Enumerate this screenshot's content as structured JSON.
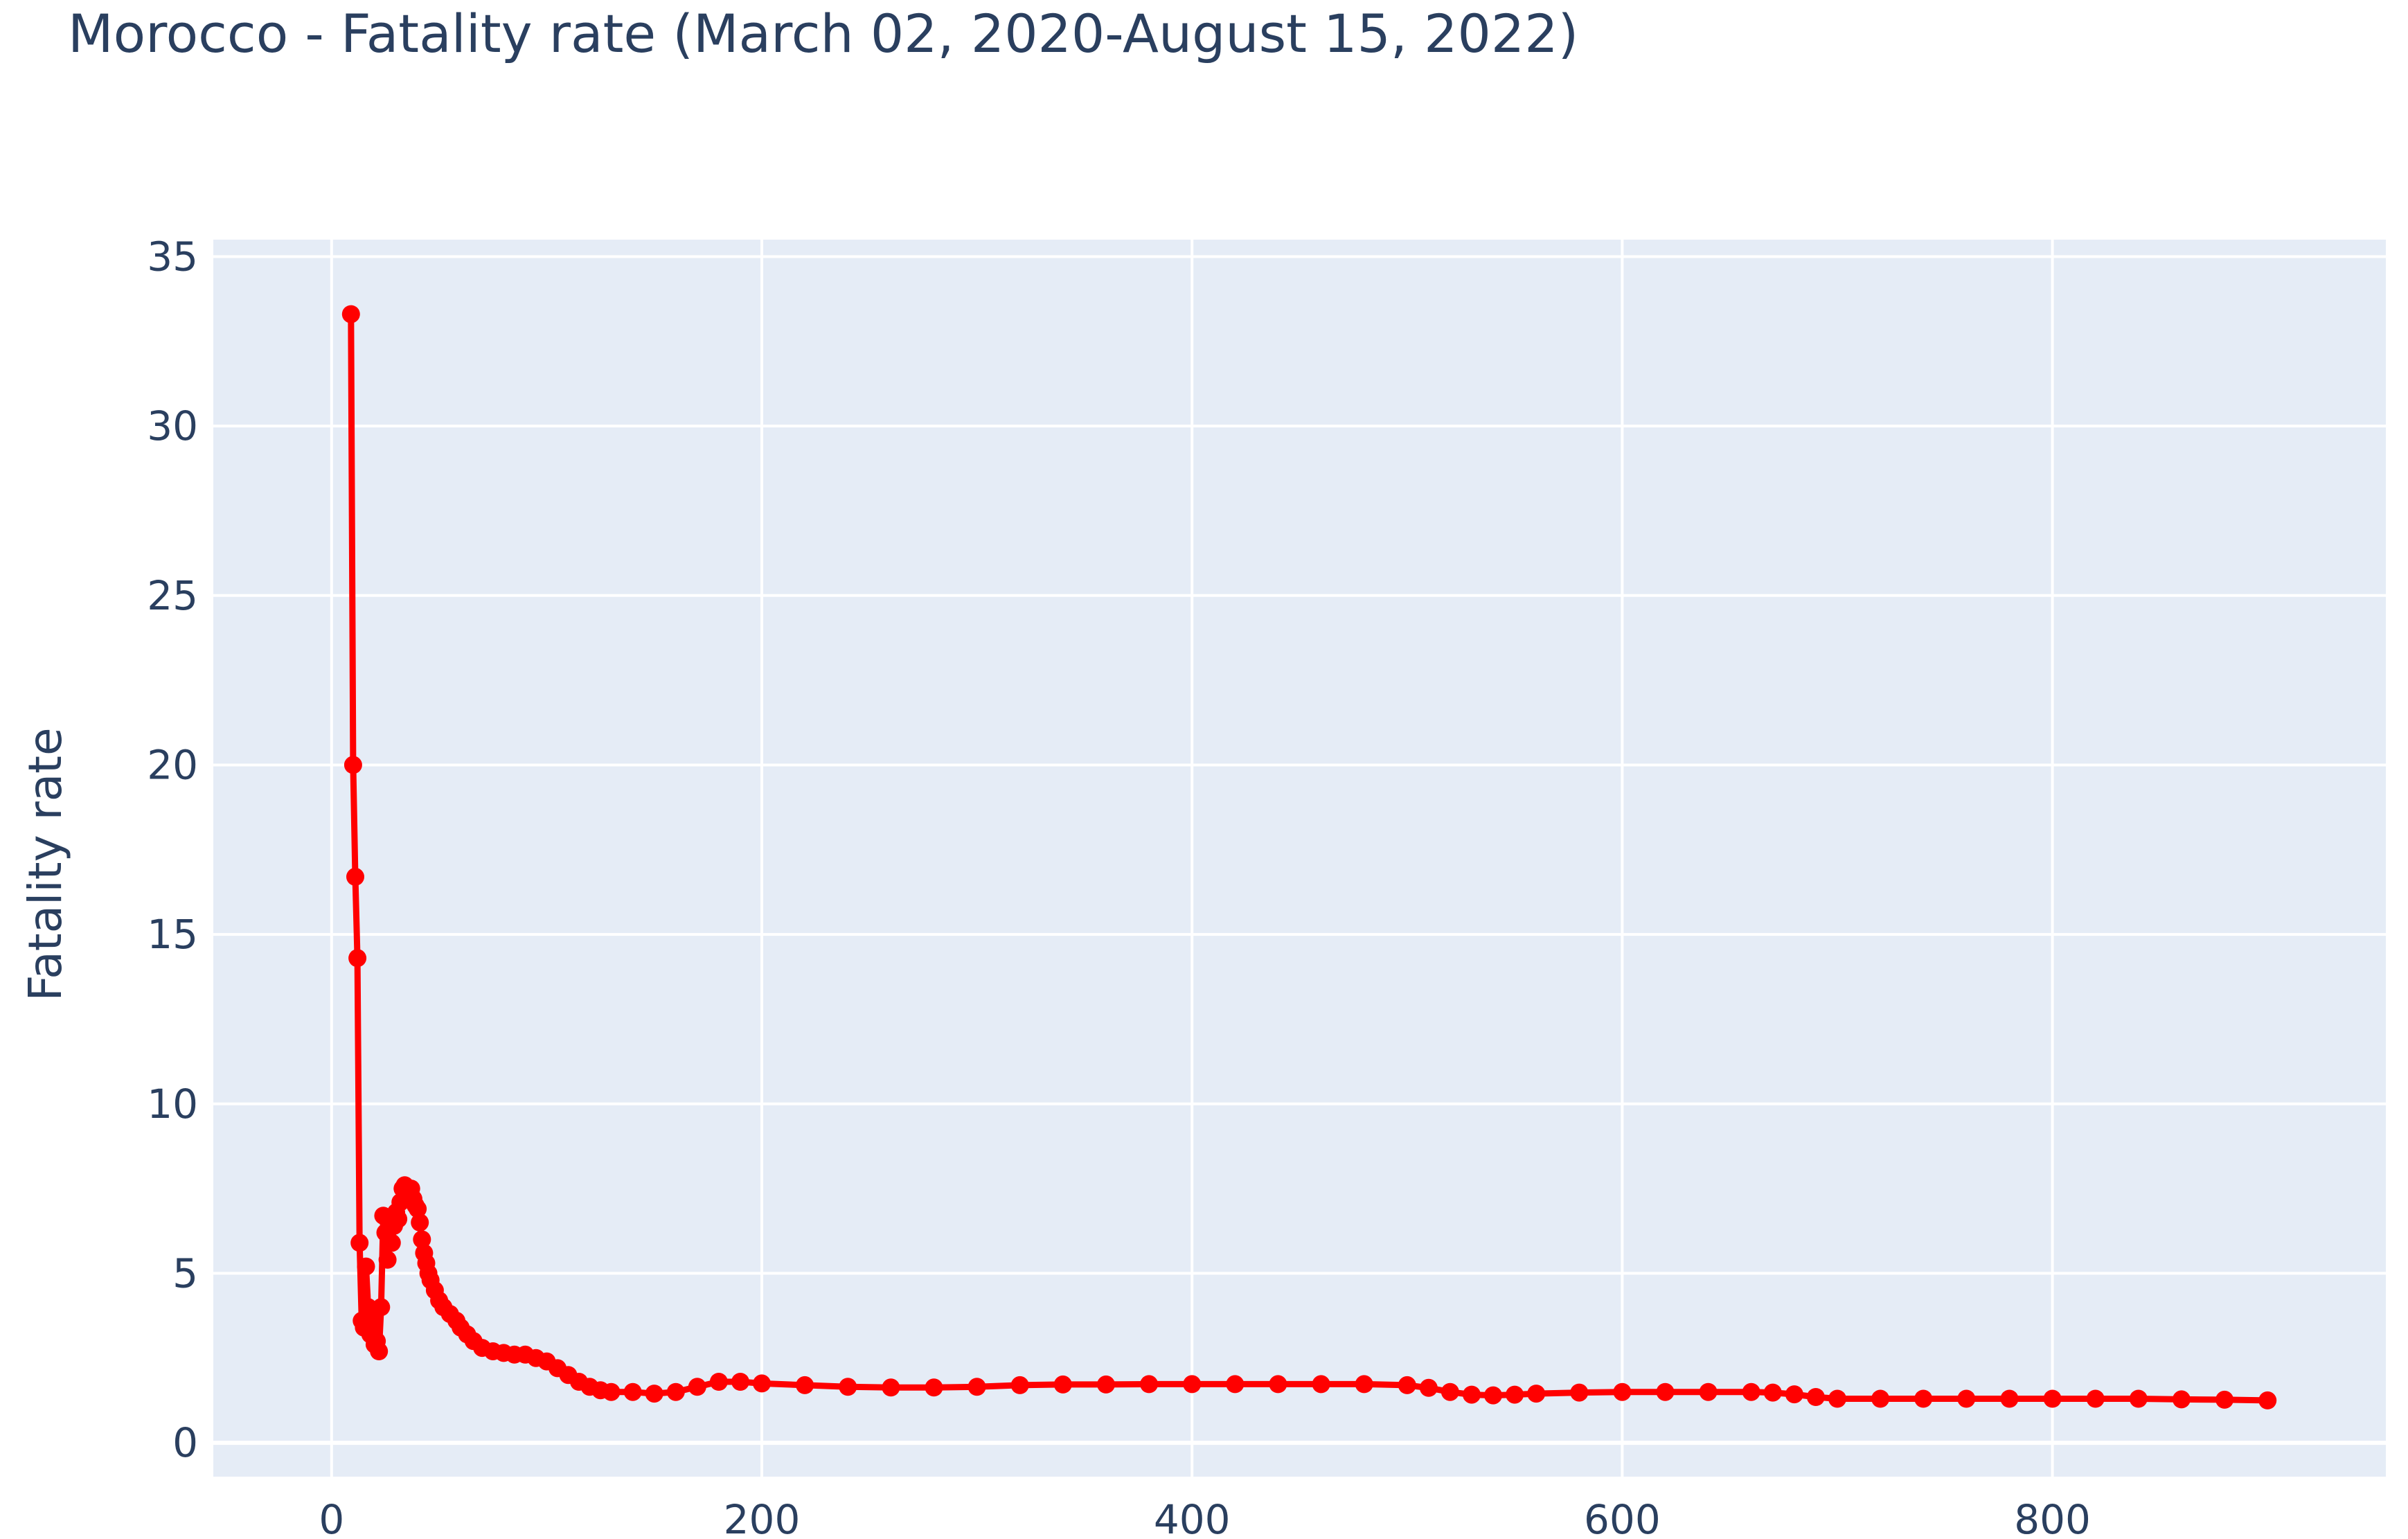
{
  "chart_data": {
    "type": "line",
    "title": "Morocco - Fatality rate (March 02, 2020-August 15, 2022)",
    "xlabel": "",
    "ylabel": "Fatality rate",
    "xlim": [
      -55,
      955
    ],
    "ylim": [
      -1,
      35.5
    ],
    "x_ticks": [
      0,
      200,
      400,
      600,
      800
    ],
    "y_ticks": [
      0,
      5,
      10,
      15,
      20,
      25,
      30,
      35
    ],
    "grid": true,
    "legend": "none",
    "colors": {
      "plot_background": "#e5ecf6",
      "grid": "#ffffff",
      "series": "#ff0000",
      "text": "#2a3f5f"
    },
    "series": [
      {
        "mode": "lines+markers",
        "x": [
          9,
          10,
          11,
          12,
          13,
          14,
          15,
          16,
          17,
          18,
          19,
          20,
          21,
          22,
          23,
          24,
          25,
          26,
          27,
          28,
          29,
          30,
          31,
          32,
          33,
          34,
          35,
          36,
          37,
          38,
          39,
          40,
          41,
          42,
          43,
          44,
          45,
          46,
          48,
          50,
          52,
          55,
          58,
          60,
          63,
          66,
          70,
          75,
          80,
          85,
          90,
          95,
          100,
          105,
          110,
          115,
          120,
          125,
          130,
          140,
          150,
          160,
          170,
          180,
          190,
          200,
          220,
          240,
          260,
          280,
          300,
          320,
          340,
          360,
          380,
          400,
          420,
          440,
          460,
          480,
          500,
          510,
          520,
          530,
          540,
          550,
          560,
          580,
          600,
          620,
          640,
          660,
          670,
          680,
          690,
          700,
          720,
          740,
          760,
          780,
          800,
          820,
          840,
          860,
          880,
          900
        ],
        "y": [
          33.3,
          20.0,
          16.7,
          14.3,
          5.9,
          3.6,
          3.4,
          5.2,
          4.0,
          3.2,
          3.6,
          2.9,
          3.0,
          2.7,
          4.0,
          6.7,
          6.2,
          5.4,
          6.5,
          5.9,
          6.4,
          6.8,
          6.6,
          7.1,
          7.5,
          7.6,
          7.4,
          7.3,
          7.5,
          7.2,
          7.0,
          6.9,
          6.5,
          6.0,
          5.6,
          5.3,
          5.0,
          4.8,
          4.5,
          4.2,
          4.0,
          3.8,
          3.6,
          3.4,
          3.2,
          3.0,
          2.8,
          2.7,
          2.65,
          2.6,
          2.6,
          2.5,
          2.4,
          2.2,
          2.0,
          1.8,
          1.65,
          1.55,
          1.5,
          1.5,
          1.45,
          1.5,
          1.65,
          1.8,
          1.8,
          1.75,
          1.7,
          1.65,
          1.63,
          1.63,
          1.65,
          1.7,
          1.72,
          1.72,
          1.73,
          1.73,
          1.73,
          1.73,
          1.73,
          1.73,
          1.7,
          1.62,
          1.5,
          1.42,
          1.4,
          1.42,
          1.45,
          1.48,
          1.5,
          1.5,
          1.5,
          1.5,
          1.48,
          1.43,
          1.35,
          1.3,
          1.3,
          1.3,
          1.3,
          1.3,
          1.3,
          1.3,
          1.3,
          1.28,
          1.27,
          1.25
        ]
      }
    ]
  }
}
